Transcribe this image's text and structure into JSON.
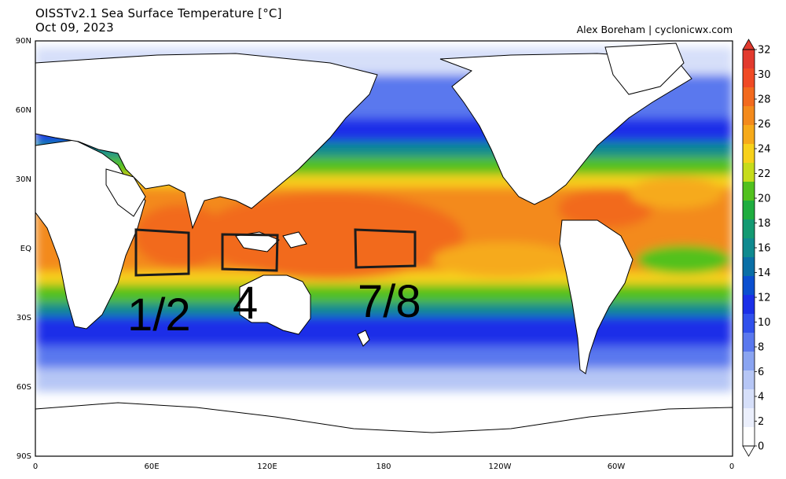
{
  "header": {
    "title": "OISSTv2.1 Sea Surface Temperature [°C]",
    "date": "Oct 09, 2023",
    "credit": "Alex Boreham | cyclonicwx.com"
  },
  "axes": {
    "lat_labels": [
      "90N",
      "60N",
      "30N",
      "EQ",
      "30S",
      "60S",
      "90S"
    ],
    "lon_labels": [
      "0",
      "60E",
      "120E",
      "180",
      "120W",
      "60W",
      "0"
    ]
  },
  "colorbar": {
    "labels": [
      "32",
      "30",
      "28",
      "26",
      "24",
      "22",
      "20",
      "18",
      "16",
      "14",
      "12",
      "10",
      "8",
      "6",
      "4",
      "2",
      "0"
    ],
    "colors": [
      "#e23a2e",
      "#f04a25",
      "#f26a1e",
      "#f38a1c",
      "#f6aa1a",
      "#f7d11b",
      "#c6dc1b",
      "#52c11e",
      "#1fad3f",
      "#139a72",
      "#0f8a8f",
      "#0a6fa6",
      "#0b4fd0",
      "#1a2fe8",
      "#3050ec",
      "#5a78ee",
      "#8aa4f1",
      "#b6c6f5",
      "#d6dff9",
      "#ebeffc",
      "#ffffff"
    ]
  },
  "regions": [
    {
      "label": "1/2"
    },
    {
      "label": "4"
    },
    {
      "label": "7/8"
    }
  ]
}
